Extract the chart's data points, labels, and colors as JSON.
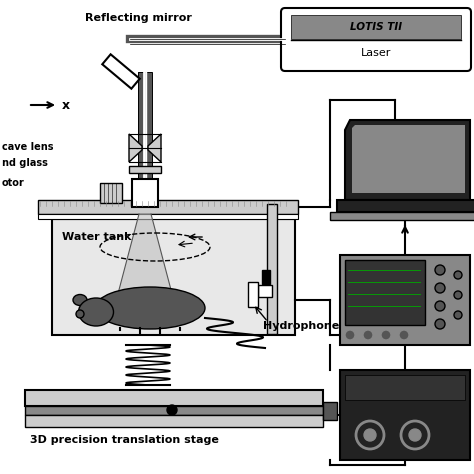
{
  "bg_color": "#ffffff",
  "lc": "#000000",
  "gl": "#cccccc",
  "gm": "#888888",
  "gd": "#555555",
  "gdark": "#222222",
  "figsize": [
    4.74,
    4.74
  ],
  "dpi": 100,
  "labels": {
    "reflecting_mirror": "Reflecting mirror",
    "lotis": "LOTIS TII",
    "laser": "Laser",
    "cave_lens": "cave lens",
    "ground_glass": "nd glass",
    "motor": "otor",
    "water_tank": "Water tank",
    "hydrophone": "Hydrophone",
    "stage": "3D precision translation stage"
  }
}
